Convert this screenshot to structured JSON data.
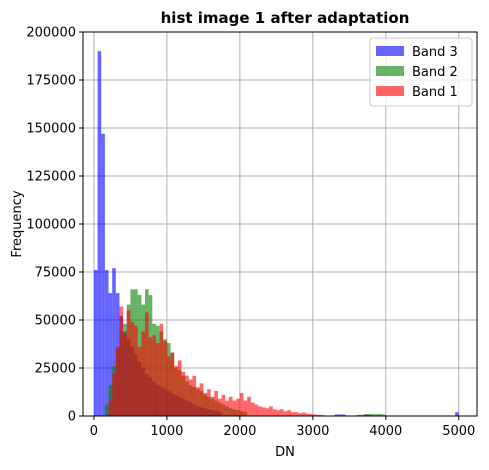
{
  "chart_data": {
    "type": "bar",
    "title": "hist image 1 after adaptation",
    "xlabel": "DN",
    "ylabel": "Frequency",
    "xlim": [
      -150,
      5250
    ],
    "ylim": [
      0,
      200000
    ],
    "xticks": [
      0,
      1000,
      2000,
      3000,
      4000,
      5000
    ],
    "yticks": [
      0,
      25000,
      50000,
      75000,
      100000,
      125000,
      150000,
      175000,
      200000
    ],
    "grid": true,
    "legend_position": "top-right",
    "bin_width": 50,
    "series": [
      {
        "name": "Band 3",
        "color": "#0000ff",
        "alpha": 0.6,
        "bins": [
          [
            0,
            76000
          ],
          [
            50,
            190000
          ],
          [
            100,
            147000
          ],
          [
            150,
            76000
          ],
          [
            200,
            64000
          ],
          [
            250,
            77000
          ],
          [
            300,
            64000
          ],
          [
            350,
            52000
          ],
          [
            400,
            44000
          ],
          [
            450,
            40000
          ],
          [
            500,
            36000
          ],
          [
            550,
            32000
          ],
          [
            600,
            28000
          ],
          [
            650,
            25000
          ],
          [
            700,
            22000
          ],
          [
            750,
            20000
          ],
          [
            800,
            18000
          ],
          [
            850,
            16000
          ],
          [
            900,
            15000
          ],
          [
            950,
            14000
          ],
          [
            1000,
            13000
          ],
          [
            1050,
            12000
          ],
          [
            1100,
            11000
          ],
          [
            1150,
            10000
          ],
          [
            1200,
            9000
          ],
          [
            1250,
            8000
          ],
          [
            1300,
            7000
          ],
          [
            1350,
            6000
          ],
          [
            1400,
            5000
          ],
          [
            1450,
            4500
          ],
          [
            1500,
            4000
          ],
          [
            1550,
            3500
          ],
          [
            1600,
            3000
          ],
          [
            1650,
            2500
          ],
          [
            1700,
            2000
          ],
          [
            3300,
            800
          ],
          [
            3350,
            800
          ],
          [
            3400,
            800
          ],
          [
            4950,
            2000
          ]
        ]
      },
      {
        "name": "Band 2",
        "color": "#008000",
        "alpha": 0.6,
        "bins": [
          [
            150,
            6000
          ],
          [
            200,
            16000
          ],
          [
            250,
            26000
          ],
          [
            300,
            35000
          ],
          [
            350,
            44000
          ],
          [
            400,
            48000
          ],
          [
            450,
            58000
          ],
          [
            500,
            66000
          ],
          [
            550,
            66000
          ],
          [
            600,
            63000
          ],
          [
            650,
            58000
          ],
          [
            700,
            66000
          ],
          [
            750,
            63000
          ],
          [
            800,
            48000
          ],
          [
            850,
            47000
          ],
          [
            900,
            44000
          ],
          [
            950,
            40000
          ],
          [
            1000,
            38000
          ],
          [
            1050,
            33000
          ],
          [
            1100,
            25000
          ],
          [
            1150,
            24000
          ],
          [
            1200,
            21000
          ],
          [
            1250,
            18000
          ],
          [
            1300,
            16000
          ],
          [
            1350,
            15000
          ],
          [
            1400,
            14000
          ],
          [
            1450,
            13000
          ],
          [
            1500,
            11000
          ],
          [
            1550,
            10000
          ],
          [
            1600,
            9000
          ],
          [
            1650,
            8000
          ],
          [
            1700,
            7000
          ],
          [
            1750,
            6000
          ],
          [
            1800,
            5000
          ],
          [
            1850,
            4000
          ],
          [
            1900,
            3500
          ],
          [
            1950,
            3000
          ],
          [
            2000,
            2500
          ],
          [
            2050,
            2000
          ],
          [
            3700,
            1000
          ],
          [
            3750,
            1000
          ],
          [
            3800,
            1000
          ],
          [
            3850,
            1000
          ],
          [
            3900,
            1000
          ],
          [
            3950,
            800
          ]
        ]
      },
      {
        "name": "Band 1",
        "color": "#ff0000",
        "alpha": 0.6,
        "bins": [
          [
            200,
            8000
          ],
          [
            250,
            22000
          ],
          [
            300,
            36000
          ],
          [
            350,
            57000
          ],
          [
            400,
            43000
          ],
          [
            450,
            55000
          ],
          [
            500,
            49000
          ],
          [
            550,
            47000
          ],
          [
            600,
            36000
          ],
          [
            650,
            44000
          ],
          [
            700,
            54000
          ],
          [
            750,
            41000
          ],
          [
            800,
            42000
          ],
          [
            850,
            38000
          ],
          [
            900,
            48000
          ],
          [
            950,
            39000
          ],
          [
            1000,
            31000
          ],
          [
            1050,
            33000
          ],
          [
            1100,
            26000
          ],
          [
            1150,
            29000
          ],
          [
            1200,
            23000
          ],
          [
            1250,
            21000
          ],
          [
            1300,
            19000
          ],
          [
            1350,
            21000
          ],
          [
            1400,
            15000
          ],
          [
            1450,
            17000
          ],
          [
            1500,
            12000
          ],
          [
            1550,
            14000
          ],
          [
            1600,
            10000
          ],
          [
            1650,
            13000
          ],
          [
            1700,
            9000
          ],
          [
            1750,
            11000
          ],
          [
            1800,
            8000
          ],
          [
            1850,
            10000
          ],
          [
            1900,
            8000
          ],
          [
            1950,
            9000
          ],
          [
            2000,
            12000
          ],
          [
            2050,
            8000
          ],
          [
            2100,
            10000
          ],
          [
            2150,
            7000
          ],
          [
            2200,
            6000
          ],
          [
            2250,
            5000
          ],
          [
            2300,
            4500
          ],
          [
            2350,
            4000
          ],
          [
            2400,
            5000
          ],
          [
            2450,
            3500
          ],
          [
            2500,
            3000
          ],
          [
            2550,
            3500
          ],
          [
            2600,
            2500
          ],
          [
            2650,
            3000
          ],
          [
            2700,
            2000
          ],
          [
            2750,
            2000
          ],
          [
            2800,
            1500
          ],
          [
            2850,
            1800
          ],
          [
            2900,
            1200
          ],
          [
            2950,
            1000
          ],
          [
            3000,
            800
          ],
          [
            3050,
            600
          ],
          [
            3100,
            500
          ],
          [
            3600,
            600
          ],
          [
            3650,
            600
          ],
          [
            3700,
            600
          ],
          [
            3750,
            600
          ]
        ]
      }
    ]
  }
}
